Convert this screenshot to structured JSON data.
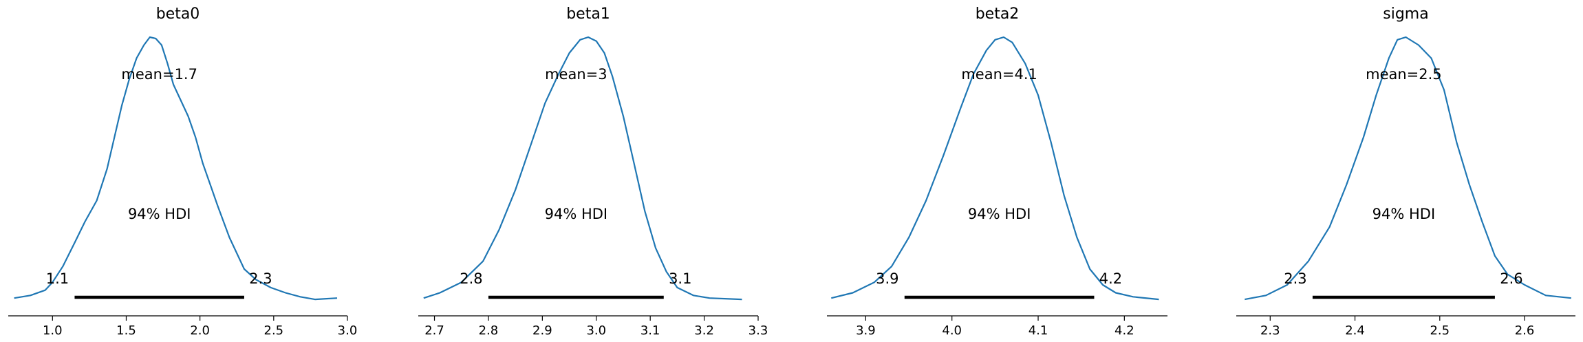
{
  "chart_data": [
    {
      "type": "line",
      "title": "beta0",
      "mean_label": "mean=1.7",
      "hdi_label": "94% HDI",
      "hdi_low_label": "1.1",
      "hdi_high_label": "2.3",
      "hdi": [
        1.15,
        2.3
      ],
      "xlim": [
        0.7,
        3.0
      ],
      "xticks": [
        "1.0",
        "1.5",
        "2.0",
        "2.5",
        "3.0"
      ],
      "x": [
        0.74,
        0.85,
        0.95,
        1.0,
        1.07,
        1.15,
        1.22,
        1.3,
        1.37,
        1.42,
        1.47,
        1.52,
        1.57,
        1.62,
        1.66,
        1.7,
        1.74,
        1.78,
        1.82,
        1.87,
        1.92,
        1.97,
        2.02,
        2.07,
        2.12,
        2.2,
        2.3,
        2.38,
        2.48,
        2.58,
        2.68,
        2.78,
        2.93
      ],
      "y": [
        0.01,
        0.02,
        0.04,
        0.07,
        0.13,
        0.22,
        0.3,
        0.38,
        0.5,
        0.62,
        0.74,
        0.84,
        0.92,
        0.97,
        1.0,
        0.995,
        0.97,
        0.9,
        0.82,
        0.76,
        0.7,
        0.62,
        0.52,
        0.44,
        0.36,
        0.24,
        0.12,
        0.08,
        0.05,
        0.03,
        0.015,
        0.005,
        0.01
      ]
    },
    {
      "type": "line",
      "title": "beta1",
      "mean_label": "mean=3",
      "hdi_label": "94% HDI",
      "hdi_low_label": "2.8",
      "hdi_high_label": "3.1",
      "hdi": [
        2.8,
        3.125
      ],
      "xlim": [
        2.67,
        3.3
      ],
      "xticks": [
        "2.7",
        "2.8",
        "2.9",
        "3.0",
        "3.1",
        "3.2",
        "3.3"
      ],
      "x": [
        2.68,
        2.71,
        2.75,
        2.79,
        2.82,
        2.85,
        2.88,
        2.905,
        2.93,
        2.95,
        2.97,
        2.985,
        3.0,
        3.015,
        3.03,
        3.05,
        3.07,
        3.09,
        3.11,
        3.13,
        3.15,
        3.18,
        3.21,
        3.27
      ],
      "y": [
        0.01,
        0.03,
        0.07,
        0.15,
        0.27,
        0.42,
        0.6,
        0.75,
        0.86,
        0.94,
        0.99,
        1.0,
        0.985,
        0.94,
        0.85,
        0.7,
        0.52,
        0.34,
        0.2,
        0.11,
        0.05,
        0.02,
        0.01,
        0.005
      ]
    },
    {
      "type": "line",
      "title": "beta2",
      "mean_label": "mean=4.1",
      "hdi_label": "94% HDI",
      "hdi_low_label": "3.9",
      "hdi_high_label": "4.2",
      "hdi": [
        3.945,
        4.165
      ],
      "xlim": [
        3.855,
        4.25
      ],
      "xticks": [
        "3.9",
        "4.0",
        "4.1",
        "4.2"
      ],
      "x": [
        3.86,
        3.885,
        3.91,
        3.93,
        3.95,
        3.97,
        3.99,
        4.01,
        4.025,
        4.04,
        4.05,
        4.06,
        4.07,
        4.085,
        4.1,
        4.115,
        4.13,
        4.145,
        4.16,
        4.175,
        4.19,
        4.21,
        4.24
      ],
      "y": [
        0.01,
        0.03,
        0.07,
        0.13,
        0.24,
        0.38,
        0.55,
        0.73,
        0.86,
        0.95,
        0.99,
        1.0,
        0.98,
        0.9,
        0.78,
        0.6,
        0.4,
        0.24,
        0.12,
        0.06,
        0.03,
        0.015,
        0.005
      ]
    },
    {
      "type": "line",
      "title": "sigma",
      "mean_label": "mean=2.5",
      "hdi_label": "94% HDI",
      "hdi_low_label": "2.3",
      "hdi_high_label": "2.6",
      "hdi": [
        2.35,
        2.565
      ],
      "xlim": [
        2.26,
        2.66
      ],
      "xticks": [
        "2.3",
        "2.4",
        "2.5",
        "2.6"
      ],
      "x": [
        2.27,
        2.295,
        2.32,
        2.345,
        2.37,
        2.39,
        2.41,
        2.425,
        2.44,
        2.45,
        2.46,
        2.475,
        2.49,
        2.505,
        2.52,
        2.535,
        2.55,
        2.565,
        2.58,
        2.6,
        2.625,
        2.655
      ],
      "y": [
        0.005,
        0.02,
        0.06,
        0.15,
        0.28,
        0.44,
        0.62,
        0.78,
        0.92,
        0.99,
        1.0,
        0.97,
        0.92,
        0.8,
        0.6,
        0.44,
        0.3,
        0.17,
        0.1,
        0.06,
        0.02,
        0.01
      ]
    }
  ]
}
